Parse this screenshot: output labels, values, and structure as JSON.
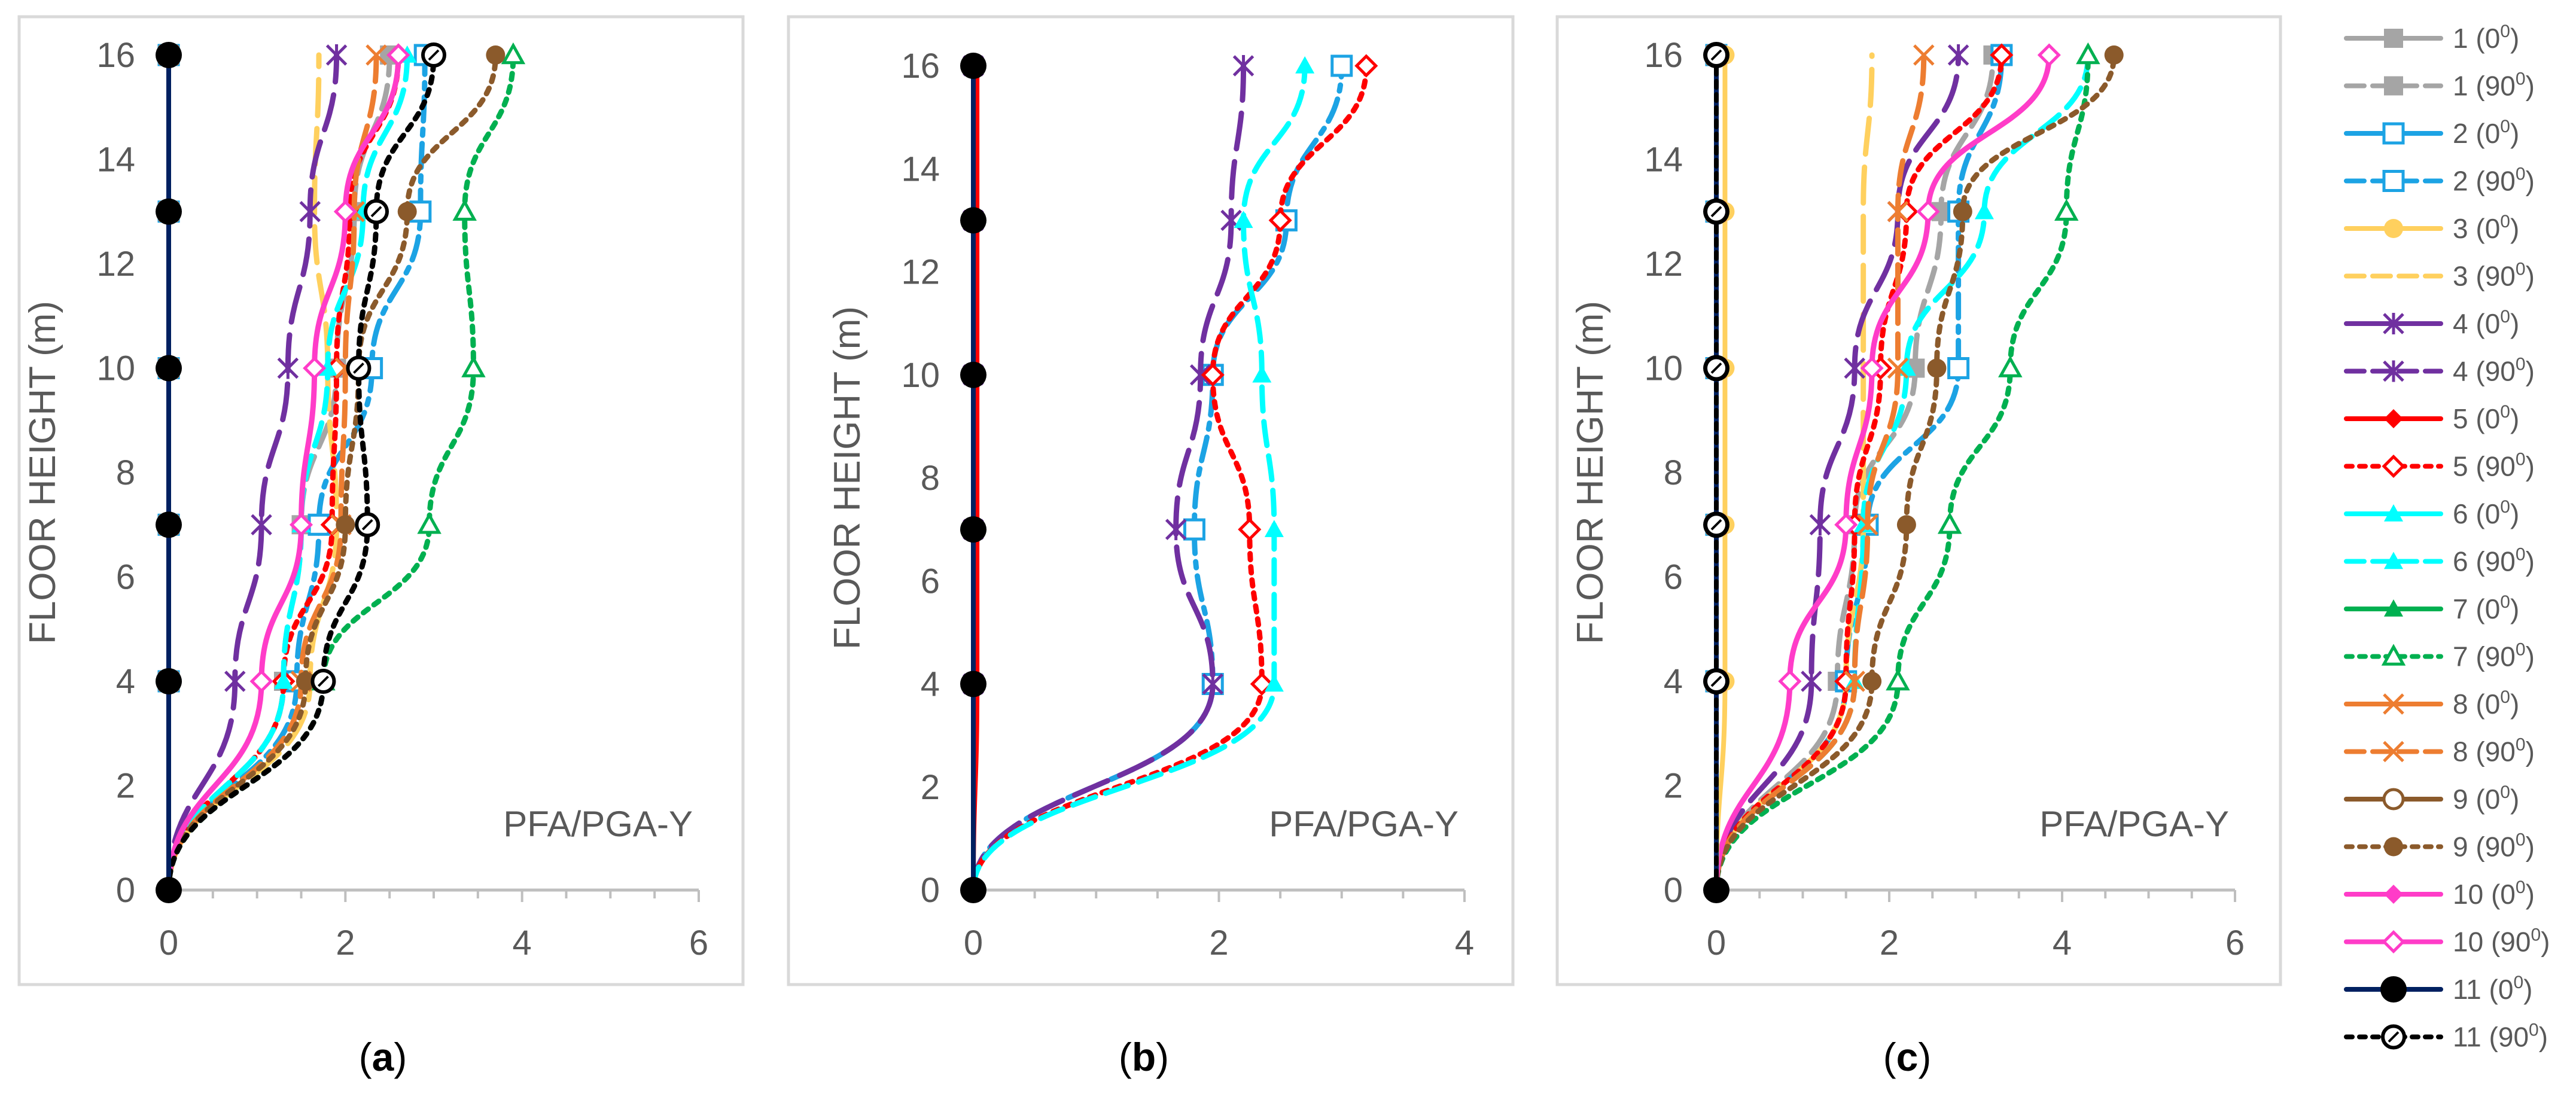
{
  "figure": {
    "panels": [
      {
        "id": "a",
        "caption_open": "(",
        "caption_letter": "a",
        "caption_close": ")"
      },
      {
        "id": "b",
        "caption_open": "(",
        "caption_letter": "b",
        "caption_close": ")"
      },
      {
        "id": "c",
        "caption_open": "(",
        "caption_letter": "c",
        "caption_close": ")"
      }
    ]
  },
  "series_styles": [
    {
      "name": "1 (0⁰)",
      "label_num": "1",
      "label_angle": "0",
      "color": "#A5A5A5",
      "dash": "solid",
      "marker": "square-filled"
    },
    {
      "name": "1 (90⁰)",
      "label_num": "1",
      "label_angle": "90",
      "color": "#A5A5A5",
      "dash": "dash",
      "marker": "square-filled"
    },
    {
      "name": "2 (0⁰)",
      "label_num": "2",
      "label_angle": "0",
      "color": "#1CA3E4",
      "dash": "solid",
      "marker": "square-open"
    },
    {
      "name": "2 (90⁰)",
      "label_num": "2",
      "label_angle": "90",
      "color": "#1CA3E4",
      "dash": "dashdot",
      "marker": "square-open"
    },
    {
      "name": "3 (0⁰)",
      "label_num": "3",
      "label_angle": "0",
      "color": "#FFD05E",
      "dash": "solid",
      "marker": "circle-filled"
    },
    {
      "name": "3 (90⁰)",
      "label_num": "3",
      "label_angle": "90",
      "color": "#FFD05E",
      "dash": "longdash",
      "marker": "none"
    },
    {
      "name": "4 (0⁰)",
      "label_num": "4",
      "label_angle": "0",
      "color": "#7030A0",
      "dash": "solid",
      "marker": "star"
    },
    {
      "name": "4 (90⁰)",
      "label_num": "4",
      "label_angle": "90",
      "color": "#7030A0",
      "dash": "longdash",
      "marker": "star"
    },
    {
      "name": "5 (0⁰)",
      "label_num": "5",
      "label_angle": "0",
      "color": "#FF0000",
      "dash": "solid",
      "marker": "diamond-filled"
    },
    {
      "name": "5 (90⁰)",
      "label_num": "5",
      "label_angle": "90",
      "color": "#FF0000",
      "dash": "dot",
      "marker": "diamond-open"
    },
    {
      "name": "6 (0⁰)",
      "label_num": "6",
      "label_angle": "0",
      "color": "#00FFFF",
      "dash": "solid",
      "marker": "triangle-filled"
    },
    {
      "name": "6 (90⁰)",
      "label_num": "6",
      "label_angle": "90",
      "color": "#00FFFF",
      "dash": "dash",
      "marker": "triangle-filled"
    },
    {
      "name": "7 (0⁰)",
      "label_num": "7",
      "label_angle": "0",
      "color": "#00B050",
      "dash": "solid",
      "marker": "triangle-filled"
    },
    {
      "name": "7 (90⁰)",
      "label_num": "7",
      "label_angle": "90",
      "color": "#00B050",
      "dash": "dot",
      "marker": "triangle-open"
    },
    {
      "name": "8 (0⁰)",
      "label_num": "8",
      "label_angle": "0",
      "color": "#ED7D31",
      "dash": "solid",
      "marker": "x"
    },
    {
      "name": "8 (90⁰)",
      "label_num": "8",
      "label_angle": "90",
      "color": "#ED7D31",
      "dash": "dash",
      "marker": "x"
    },
    {
      "name": "9 (0⁰)",
      "label_num": "9",
      "label_angle": "0",
      "color": "#8B5A2B",
      "dash": "solid",
      "marker": "circle-open"
    },
    {
      "name": "9 (90⁰)",
      "label_num": "9",
      "label_angle": "90",
      "color": "#8B5A2B",
      "dash": "dot",
      "marker": "circle-filled"
    },
    {
      "name": "10 (0⁰)",
      "label_num": "10",
      "label_angle": "0",
      "color": "#FF3CC8",
      "dash": "solid",
      "marker": "diamond-filled"
    },
    {
      "name": "10 (90⁰)",
      "label_num": "10",
      "label_angle": "90",
      "color": "#FF3CC8",
      "dash": "solid",
      "marker": "diamond-open"
    },
    {
      "name": "11 (0⁰)",
      "label_num": "11",
      "label_angle": "0",
      "color": "#002060",
      "dash": "solid",
      "marker": "circle-filled-black"
    },
    {
      "name": "11 (90⁰)",
      "label_num": "11",
      "label_angle": "90",
      "color": "#000000",
      "dash": "dot",
      "marker": "circle-open-black"
    }
  ],
  "chart_data": [
    {
      "type": "line",
      "panel": "a",
      "title": "",
      "xlabel": "",
      "ylabel": "FLOOR HEIGHT (m)",
      "annotation": "PFA/PGA-Y",
      "xlim": [
        0,
        6
      ],
      "ylim": [
        0,
        16
      ],
      "xticks": [
        "0",
        "2",
        "4",
        "6"
      ],
      "yticks": [
        "0",
        "2",
        "4",
        "6",
        "8",
        "10",
        "12",
        "14",
        "16"
      ],
      "y": [
        0,
        4,
        7,
        10,
        13,
        16
      ],
      "series": [
        {
          "name": "1 (0⁰)",
          "values": [
            0,
            0,
            0,
            0,
            0,
            0
          ]
        },
        {
          "name": "1 (90⁰)",
          "values": [
            0,
            1.3,
            1.5,
            1.9,
            2.1,
            2.5
          ]
        },
        {
          "name": "2 (0⁰)",
          "values": [
            0,
            0,
            0,
            0,
            0,
            0
          ]
        },
        {
          "name": "2 (90⁰)",
          "values": [
            0,
            1.45,
            1.7,
            2.3,
            2.85,
            2.9
          ]
        },
        {
          "name": "3 (0⁰)",
          "values": [
            0,
            0,
            0,
            0,
            0,
            0
          ]
        },
        {
          "name": "3 (90⁰)",
          "values": [
            0,
            1.6,
            1.9,
            1.8,
            1.65,
            1.7
          ]
        },
        {
          "name": "4 (0⁰)",
          "values": [
            0,
            0,
            0,
            0,
            0,
            0
          ]
        },
        {
          "name": "4 (90⁰)",
          "values": [
            0,
            0.75,
            1.05,
            1.35,
            1.6,
            1.9
          ]
        },
        {
          "name": "5 (0⁰)",
          "values": [
            0,
            0,
            0,
            0,
            0,
            0
          ]
        },
        {
          "name": "5 (90⁰)",
          "values": [
            0,
            1.3,
            1.85,
            1.9,
            2.05,
            2.6
          ]
        },
        {
          "name": "6 (0⁰)",
          "values": [
            0,
            0,
            0,
            0,
            0,
            0
          ]
        },
        {
          "name": "6 (90⁰)",
          "values": [
            0,
            1.3,
            1.5,
            1.8,
            2.2,
            2.7
          ]
        },
        {
          "name": "7 (0⁰)",
          "values": [
            0,
            0,
            0,
            0,
            0,
            0
          ]
        },
        {
          "name": "7 (90⁰)",
          "values": [
            0,
            1.75,
            2.95,
            3.45,
            3.35,
            3.9
          ]
        },
        {
          "name": "8 (0⁰)",
          "values": [
            0,
            0,
            0,
            0,
            0,
            0
          ]
        },
        {
          "name": "8 (90⁰)",
          "values": [
            0,
            1.5,
            1.95,
            2.0,
            2.1,
            2.35
          ]
        },
        {
          "name": "9 (0⁰)",
          "values": [
            0,
            0,
            0,
            0,
            0,
            0
          ]
        },
        {
          "name": "9 (90⁰)",
          "values": [
            0,
            1.55,
            2.0,
            2.15,
            2.7,
            3.7
          ]
        },
        {
          "name": "10 (0⁰)",
          "values": [
            0,
            0,
            0,
            0,
            0,
            0
          ]
        },
        {
          "name": "10 (90⁰)",
          "values": [
            0,
            1.05,
            1.5,
            1.65,
            2.0,
            2.6
          ]
        },
        {
          "name": "11 (0⁰)",
          "values": [
            0,
            0,
            0,
            0,
            0,
            0
          ]
        },
        {
          "name": "11 (90⁰)",
          "values": [
            0,
            1.75,
            2.25,
            2.15,
            2.35,
            3.0
          ]
        }
      ]
    },
    {
      "type": "line",
      "panel": "b",
      "title": "",
      "xlabel": "",
      "ylabel": "FLOOR HEIGHT (m)",
      "annotation": "PFA/PGA-Y",
      "xlim": [
        0,
        4
      ],
      "ylim": [
        0,
        16
      ],
      "xticks": [
        "0",
        "2",
        "4"
      ],
      "yticks": [
        "0",
        "2",
        "4",
        "6",
        "8",
        "10",
        "12",
        "14",
        "16"
      ],
      "y": [
        0,
        4,
        7,
        10,
        13,
        16
      ],
      "series": [
        {
          "name": "1 (0⁰)",
          "values": [
            0,
            0,
            0,
            0,
            0,
            0
          ]
        },
        {
          "name": "2 (90⁰)",
          "values": [
            0,
            1.95,
            1.8,
            1.95,
            2.55,
            3.0
          ]
        },
        {
          "name": "4 (0⁰)",
          "values": [
            0,
            0,
            0,
            0,
            0,
            0
          ]
        },
        {
          "name": "4 (90⁰)",
          "values": [
            0,
            1.95,
            1.65,
            1.85,
            2.1,
            2.2
          ]
        },
        {
          "name": "5 (0⁰)",
          "values": [
            0,
            0.03,
            0.03,
            0.03,
            0.03,
            0.03
          ]
        },
        {
          "name": "5 (90⁰)",
          "values": [
            0,
            2.35,
            2.25,
            1.95,
            2.5,
            3.2
          ]
        },
        {
          "name": "6 (90⁰)",
          "values": [
            0,
            2.45,
            2.45,
            2.35,
            2.2,
            2.7
          ]
        },
        {
          "name": "11 (0⁰)",
          "values": [
            0,
            0,
            0,
            0,
            0,
            0
          ]
        }
      ]
    },
    {
      "type": "line",
      "panel": "c",
      "title": "",
      "xlabel": "",
      "ylabel": "FLOOR HEIGHT (m)",
      "annotation": "PFA/PGA-Y",
      "xlim": [
        0,
        6
      ],
      "ylim": [
        0,
        16
      ],
      "xticks": [
        "0",
        "2",
        "4",
        "6"
      ],
      "yticks": [
        "0",
        "2",
        "4",
        "6",
        "8",
        "10",
        "12",
        "14",
        "16"
      ],
      "y": [
        0,
        4,
        7,
        10,
        13,
        16
      ],
      "series": [
        {
          "name": "1 (0⁰)",
          "values": [
            0,
            0,
            0,
            0,
            0,
            0
          ]
        },
        {
          "name": "1 (90⁰)",
          "values": [
            0,
            1.4,
            1.6,
            2.3,
            2.6,
            3.2
          ]
        },
        {
          "name": "2 (0⁰)",
          "values": [
            0,
            0,
            0,
            0,
            0,
            0
          ]
        },
        {
          "name": "2 (90⁰)",
          "values": [
            0,
            1.5,
            1.75,
            2.8,
            2.8,
            3.3
          ]
        },
        {
          "name": "3 (0⁰)",
          "values": [
            0,
            0.1,
            0.1,
            0.1,
            0.1,
            0.1
          ]
        },
        {
          "name": "3 (90⁰)",
          "values": [
            0,
            1.5,
            1.7,
            1.7,
            1.7,
            1.8
          ]
        },
        {
          "name": "4 (0⁰)",
          "values": [
            0,
            0,
            0,
            0,
            0,
            0
          ]
        },
        {
          "name": "4 (90⁰)",
          "values": [
            0,
            1.1,
            1.2,
            1.6,
            2.1,
            2.8
          ]
        },
        {
          "name": "5 (0⁰)",
          "values": [
            0,
            0,
            0,
            0,
            0,
            0
          ]
        },
        {
          "name": "5 (90⁰)",
          "values": [
            0,
            1.5,
            1.6,
            1.9,
            2.2,
            3.3
          ]
        },
        {
          "name": "6 (0⁰)",
          "values": [
            0,
            0,
            0,
            0,
            0,
            0
          ]
        },
        {
          "name": "6 (90⁰)",
          "values": [
            0,
            1.6,
            1.7,
            2.2,
            3.1,
            4.3
          ]
        },
        {
          "name": "7 (0⁰)",
          "values": [
            0,
            0,
            0,
            0,
            0,
            0
          ]
        },
        {
          "name": "7 (90⁰)",
          "values": [
            0,
            2.1,
            2.7,
            3.4,
            4.05,
            4.3
          ]
        },
        {
          "name": "8 (0⁰)",
          "values": [
            0,
            0,
            0,
            0,
            0,
            0
          ]
        },
        {
          "name": "8 (90⁰)",
          "values": [
            0,
            1.6,
            1.75,
            2.1,
            2.1,
            2.4
          ]
        },
        {
          "name": "9 (0⁰)",
          "values": [
            0,
            0,
            0,
            0,
            0,
            0
          ]
        },
        {
          "name": "9 (90⁰)",
          "values": [
            0,
            1.8,
            2.2,
            2.55,
            2.85,
            4.6
          ]
        },
        {
          "name": "10 (0⁰)",
          "values": [
            0,
            0,
            0,
            0,
            0,
            0
          ]
        },
        {
          "name": "10 (90⁰)",
          "values": [
            0,
            0.85,
            1.5,
            1.8,
            2.45,
            3.85
          ]
        },
        {
          "name": "11 (0⁰)",
          "values": [
            0,
            0,
            0,
            0,
            0,
            0
          ]
        },
        {
          "name": "11 (90⁰)",
          "values": [
            0,
            0,
            0,
            0,
            0,
            0
          ]
        }
      ]
    }
  ]
}
